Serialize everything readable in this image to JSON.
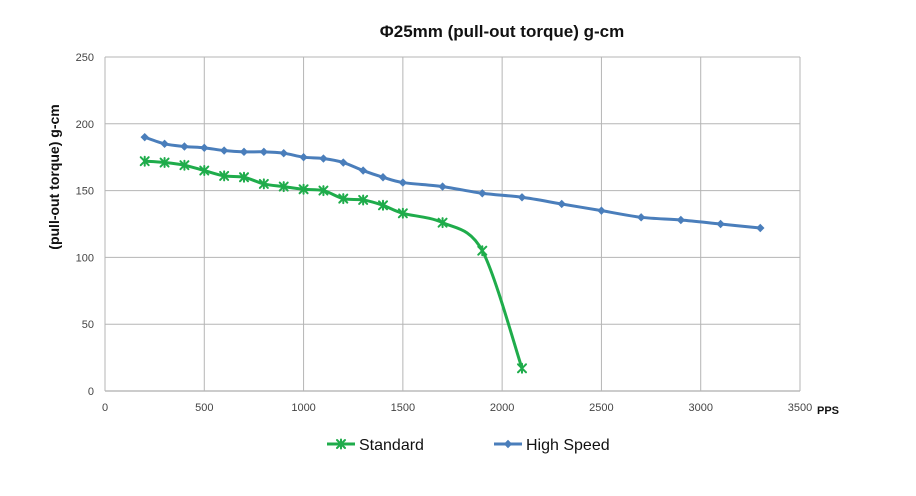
{
  "chart_data": {
    "type": "line",
    "title": "Φ25mm  (pull-out torque) g-cm",
    "xlabel": "PPS",
    "ylabel": "(pull-out torque) g-cm",
    "xlim": [
      0,
      3500
    ],
    "ylim": [
      0,
      250
    ],
    "xticks": [
      0,
      500,
      1000,
      1500,
      2000,
      2500,
      3000,
      3500
    ],
    "yticks": [
      0,
      50,
      100,
      150,
      200,
      250
    ],
    "grid": true,
    "legend_position": "bottom",
    "series": [
      {
        "name": "Standard",
        "color": "#1fac4b",
        "marker": "asterisk",
        "x": [
          200,
          300,
          400,
          500,
          600,
          700,
          800,
          900,
          1000,
          1100,
          1200,
          1300,
          1400,
          1500,
          1700,
          1900,
          2100
        ],
        "y": [
          172,
          171,
          169,
          165,
          161,
          160,
          155,
          153,
          151,
          150,
          144,
          143,
          139,
          133,
          126,
          105,
          17
        ]
      },
      {
        "name": "High Speed",
        "color": "#4a7ebb",
        "marker": "diamond",
        "x": [
          200,
          300,
          400,
          500,
          600,
          700,
          800,
          900,
          1000,
          1100,
          1200,
          1300,
          1400,
          1500,
          1700,
          1900,
          2100,
          2300,
          2500,
          2700,
          2900,
          3100,
          3300
        ],
        "y": [
          190,
          185,
          183,
          182,
          180,
          179,
          179,
          178,
          175,
          174,
          171,
          165,
          160,
          156,
          153,
          148,
          145,
          140,
          135,
          130,
          128,
          125,
          122
        ]
      }
    ]
  }
}
